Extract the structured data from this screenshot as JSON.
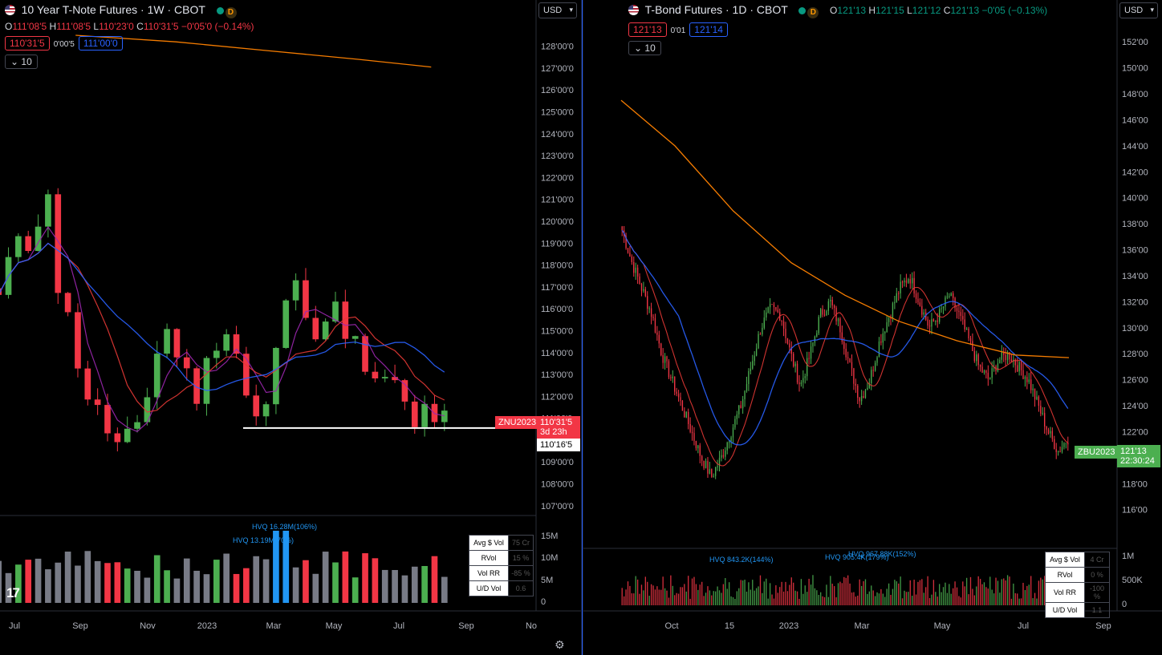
{
  "left": {
    "title": "10 Year T-Note Futures · 1W · CBOT",
    "ohlc": {
      "o": "111'08'5",
      "h": "111'08'5",
      "l": "110'23'0",
      "c": "110'31'5",
      "chg": "−0'05'0 (−0.14%)"
    },
    "labels": {
      "o": "O",
      "h": "H",
      "l": "L",
      "c": "C"
    },
    "bid": "110'31'5",
    "spread": "0'00'5",
    "ask": "111'00'0",
    "collapse": "10",
    "currency": "USD",
    "yticks": [
      "128'00'0",
      "127'00'0",
      "126'00'0",
      "125'00'0",
      "124'00'0",
      "123'00'0",
      "122'00'0",
      "121'00'0",
      "120'00'0",
      "119'00'0",
      "118'00'0",
      "117'00'0",
      "116'00'0",
      "115'00'0",
      "114'00'0",
      "113'00'0",
      "112'00'0",
      "111'00'0",
      "110'00'0",
      "109'00'0",
      "108'00'0",
      "107'00'0"
    ],
    "vol_ticks": [
      "15M",
      "10M",
      "5M",
      "0"
    ],
    "xticks": [
      "Jul",
      "Sep",
      "Nov",
      "2023",
      "Mar",
      "May",
      "Jul",
      "Sep",
      "No"
    ],
    "symbol_tag": "ZNU2023",
    "price_tag": "110'31'5",
    "countdown": "3d 23h",
    "line_tag": "110'16'5",
    "hvq1": "HVQ 16.28M(106%)",
    "hvq2": "HVQ 13.19M(70%)",
    "table": [
      {
        "k": "Avg $ Vol",
        "v": "75 Cr"
      },
      {
        "k": "RVol",
        "v": "15 %"
      },
      {
        "k": "Vol RR",
        "v": "-85 %"
      },
      {
        "k": "U/D Vol",
        "v": "0.6"
      }
    ],
    "colors": {
      "up": "#4caf50",
      "down": "#f23645",
      "vol_neutral": "#787b86",
      "vol_hvq": "#2196f3",
      "ma_blue": "#2962ff",
      "ma_red": "#e53935",
      "ma_purple": "#9c27b0",
      "ma_green": "#00c853",
      "ma_orange": "#f57c00"
    }
  },
  "right": {
    "title": "T-Bond Futures · 1D · CBOT",
    "ohlc": {
      "o": "121'13",
      "h": "121'15",
      "l": "121'12",
      "c": "121'13",
      "chg": "−0'05 (−0.13%)"
    },
    "labels": {
      "o": "O",
      "h": "H",
      "l": "L",
      "c": "C"
    },
    "bid": "121'13",
    "spread": "0'01",
    "ask": "121'14",
    "collapse": "10",
    "currency": "USD",
    "yticks": [
      "152'00",
      "150'00",
      "148'00",
      "146'00",
      "144'00",
      "142'00",
      "140'00",
      "138'00",
      "136'00",
      "134'00",
      "132'00",
      "130'00",
      "128'00",
      "126'00",
      "124'00",
      "122'00",
      "120'00",
      "118'00",
      "116'00"
    ],
    "vol_ticks": [
      "1M",
      "500K",
      "0"
    ],
    "xticks": [
      "Oct",
      "15",
      "2023",
      "Mar",
      "May",
      "Jul",
      "Sep"
    ],
    "symbol_tag": "ZBU2023",
    "price_tag": "121'13",
    "countdown": "22:30:24",
    "hvq1": "HVQ 843.2K(144%)",
    "hvq2": "HVQ 905.4K(179%)",
    "hvq3": "HVQ 967.88K(152%)",
    "table": [
      {
        "k": "Avg $ Vol",
        "v": "4 Cr"
      },
      {
        "k": "RVol",
        "v": "0 %"
      },
      {
        "k": "Vol RR",
        "v": "-100 %"
      },
      {
        "k": "U/D Vol",
        "v": "1.1"
      }
    ]
  },
  "chart_data": [
    {
      "type": "candlestick",
      "title": "10 Year T-Note Futures · 1W · CBOT",
      "ylim": [
        106.7,
        128.5
      ],
      "x": [
        "Jul",
        "Sep",
        "Nov",
        "2023",
        "Mar",
        "May",
        "Jul",
        "Sep",
        "No"
      ],
      "close_approx": [
        116.5,
        118,
        119.5,
        119,
        120,
        121,
        117,
        116,
        113,
        112,
        111.5,
        110,
        109.5,
        110.5,
        111,
        112,
        114,
        115,
        114,
        113,
        112,
        113.5,
        114.5,
        115,
        114,
        112,
        111,
        111.5,
        114,
        116.5,
        117,
        116,
        115,
        115.5,
        116,
        115,
        114.5,
        113,
        112.5,
        113,
        112.5,
        111.5,
        110.5,
        111.5,
        111,
        111
      ],
      "last": "110'31'5",
      "hline": "110'16'5"
    },
    {
      "type": "candlestick",
      "title": "T-Bond Futures · 1D · CBOT",
      "ylim": [
        114.5,
        153
      ],
      "x": [
        "Oct",
        "15",
        "2023",
        "Mar",
        "May",
        "Jul",
        "Sep"
      ],
      "close_approx": [
        137.5,
        135,
        133,
        131,
        128,
        126,
        124,
        122,
        120,
        118.5,
        120,
        122,
        124,
        127,
        130,
        131.5,
        131,
        128,
        125.5,
        128,
        131,
        132,
        130,
        127,
        124.5,
        126,
        129,
        131,
        133,
        134,
        132,
        130,
        131,
        132.5,
        131,
        129,
        127,
        126,
        127.5,
        128,
        127,
        126,
        124,
        122,
        120.5,
        121.5
      ],
      "last": "121'13"
    }
  ]
}
